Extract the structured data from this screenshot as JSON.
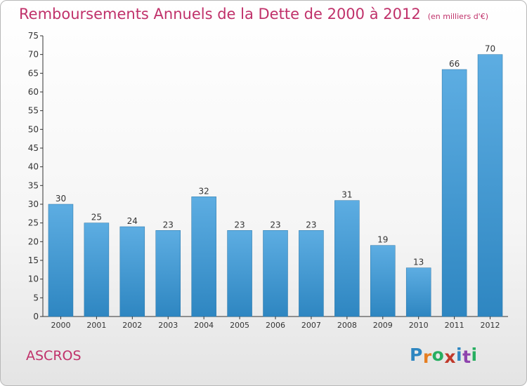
{
  "chart_data": {
    "type": "bar",
    "title": "Remboursements Annuels de la Dette de 2000 à 2012",
    "subtitle": "(en milliers d'€)",
    "categories": [
      "2000",
      "2001",
      "2002",
      "2003",
      "2004",
      "2005",
      "2006",
      "2007",
      "2008",
      "2009",
      "2010",
      "2011",
      "2012"
    ],
    "values": [
      30,
      25,
      24,
      23,
      32,
      23,
      23,
      23,
      31,
      19,
      13,
      66,
      70
    ],
    "ylim": [
      0,
      75
    ],
    "yticks": [
      0,
      5,
      10,
      15,
      20,
      25,
      30,
      35,
      40,
      45,
      50,
      55,
      60,
      65,
      70,
      75
    ],
    "grid": false,
    "bar_color_top": "#5dade2",
    "bar_color_bottom": "#2e86c1"
  },
  "footer": {
    "place": "ASCROS",
    "logo": "Proxiti",
    "logo_colors": [
      "#2e86c1",
      "#e67e22",
      "#27ae60",
      "#c0392b",
      "#2e86c1",
      "#8e44ad",
      "#27ae60"
    ]
  },
  "colors": {
    "title": "#c0316a",
    "axis": "#333333"
  }
}
